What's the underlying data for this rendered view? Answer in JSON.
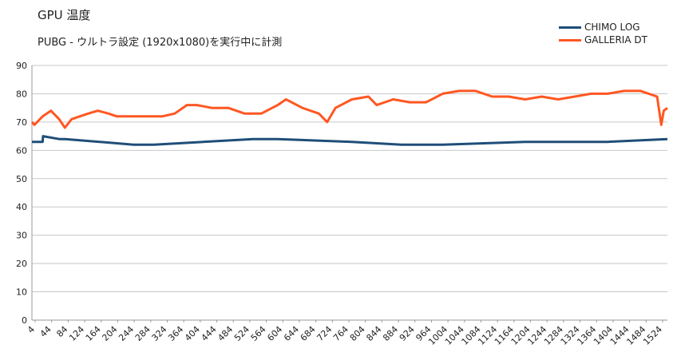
{
  "chart_data": {
    "type": "line",
    "title": "GPU 温度",
    "subtitle": "PUBG -  ウルトラ設定 (1920x1080)を実行中に計測",
    "xlabel": "",
    "ylabel": "",
    "ylim": [
      0,
      90
    ],
    "y_ticks": [
      0,
      10,
      20,
      30,
      40,
      50,
      60,
      70,
      80,
      90
    ],
    "x_tick_labels": [
      "4",
      "44",
      "84",
      "124",
      "164",
      "204",
      "244",
      "284",
      "324",
      "364",
      "404",
      "444",
      "484",
      "524",
      "564",
      "604",
      "644",
      "684",
      "724",
      "764",
      "804",
      "844",
      "884",
      "924",
      "964",
      "1004",
      "1044",
      "1084",
      "1124",
      "1164",
      "1204",
      "1244",
      "1284",
      "1324",
      "1364",
      "1404",
      "1444",
      "1484",
      "1524"
    ],
    "x_range": [
      4,
      1545
    ],
    "grid": true,
    "legend_position": "top-right",
    "series": [
      {
        "name": "CHIMO LOG",
        "color": "#1f4e79",
        "x": [
          4,
          30,
          31,
          70,
          84,
          250,
          300,
          540,
          600,
          780,
          900,
          1000,
          1200,
          1300,
          1400,
          1545
        ],
        "y": [
          63,
          63,
          65,
          64,
          64,
          62,
          62,
          64,
          64,
          63,
          62,
          62,
          63,
          63,
          63,
          64
        ]
      },
      {
        "name": "GALLERIA DT",
        "color": "#ff5722",
        "x": [
          4,
          10,
          30,
          50,
          70,
          84,
          100,
          140,
          164,
          190,
          210,
          240,
          280,
          320,
          350,
          380,
          404,
          440,
          480,
          520,
          560,
          600,
          620,
          660,
          700,
          720,
          740,
          780,
          820,
          840,
          880,
          920,
          960,
          1000,
          1040,
          1080,
          1120,
          1160,
          1200,
          1240,
          1280,
          1320,
          1360,
          1400,
          1440,
          1480,
          1520,
          1530,
          1536,
          1545
        ],
        "y": [
          70,
          69,
          72,
          74,
          71,
          68,
          71,
          73,
          74,
          73,
          72,
          72,
          72,
          72,
          73,
          76,
          76,
          75,
          75,
          73,
          73,
          76,
          78,
          75,
          73,
          70,
          75,
          78,
          79,
          76,
          78,
          77,
          77,
          80,
          81,
          81,
          79,
          79,
          78,
          79,
          78,
          79,
          80,
          80,
          81,
          81,
          79,
          69,
          74,
          75
        ]
      }
    ]
  }
}
